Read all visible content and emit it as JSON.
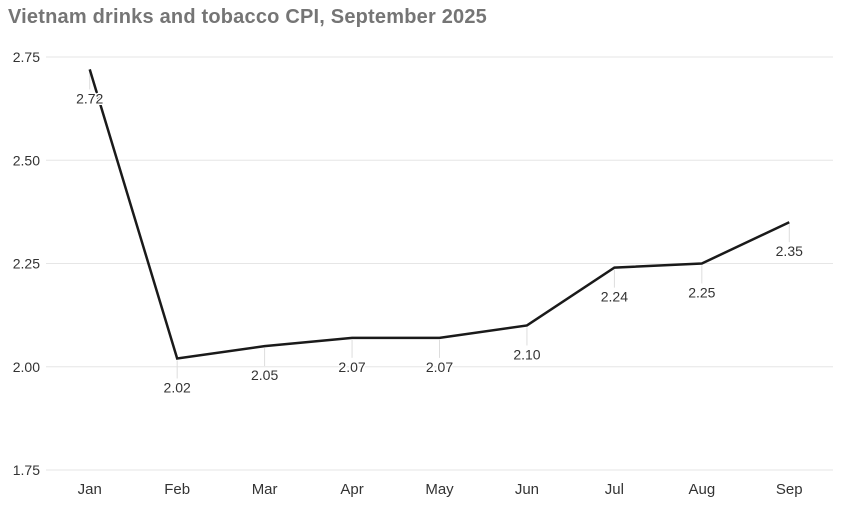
{
  "title": "Vietnam drinks and tobacco CPI, September 2025",
  "chart_data": {
    "type": "line",
    "title": "Vietnam drinks and tobacco CPI, September 2025",
    "categories": [
      "Jan",
      "Feb",
      "Mar",
      "Apr",
      "May",
      "Jun",
      "Jul",
      "Aug",
      "Sep"
    ],
    "values": [
      2.72,
      2.02,
      2.05,
      2.07,
      2.07,
      2.1,
      2.24,
      2.25,
      2.35
    ],
    "data_labels": [
      "2.72",
      "2.02",
      "2.05",
      "2.07",
      "2.07",
      "2.10",
      "2.24",
      "2.25",
      "2.35"
    ],
    "xlabel": "",
    "ylabel": "",
    "ylim": [
      1.75,
      2.75
    ],
    "yticks": [
      2.75,
      2.5,
      2.25,
      2.0,
      1.75
    ],
    "ytick_labels": [
      "2.75",
      "2.50",
      "2.25",
      "2.00",
      "1.75"
    ],
    "grid": true,
    "legend": false,
    "colors": {
      "line": "#1a1a1a",
      "grid": "#e6e6e6",
      "title": "#757575",
      "axis_label": "#333333",
      "data_label": "#333333",
      "connector": "#dddddd",
      "background": "#ffffff"
    }
  }
}
